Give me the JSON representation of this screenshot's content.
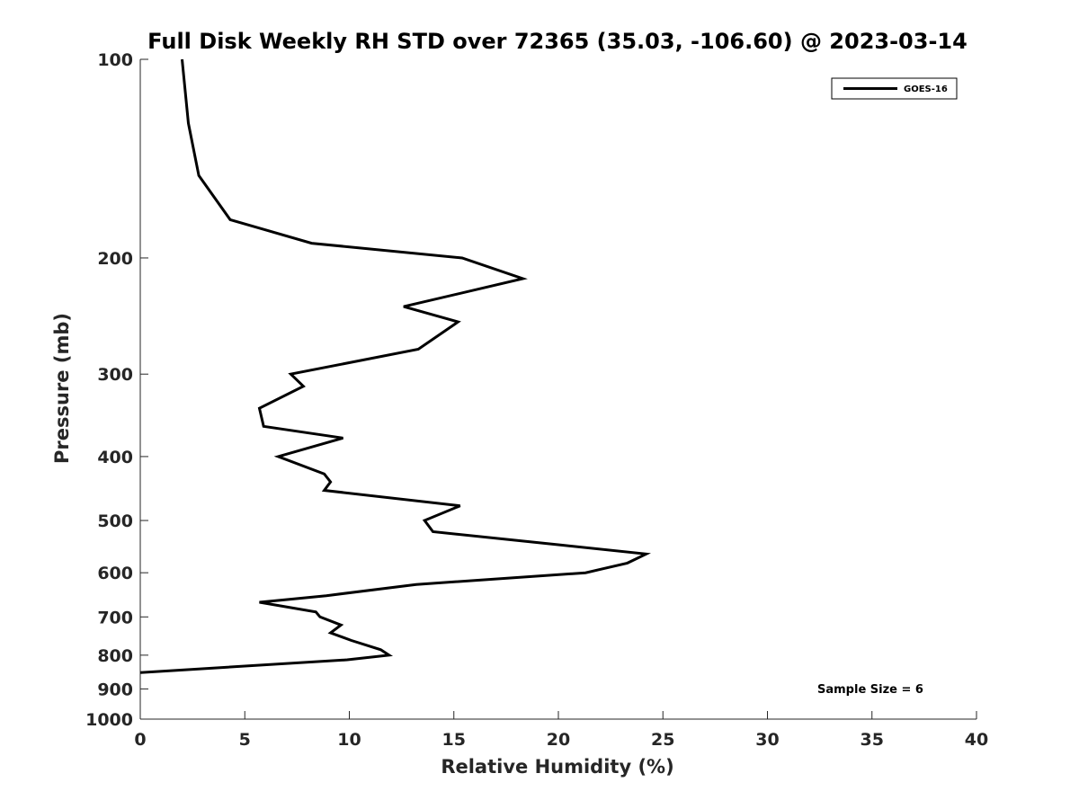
{
  "chart_data": {
    "type": "line",
    "title": "Full Disk Weekly RH STD over 72365 (35.03, -106.60) @ 2023-03-14",
    "xlabel": "Relative Humidity (%)",
    "ylabel": "Pressure (mb)",
    "xlim": [
      0,
      40
    ],
    "ylim": [
      100,
      1000
    ],
    "y_scale": "log",
    "y_inverted": true,
    "x_ticks": [
      "0",
      "5",
      "10",
      "15",
      "20",
      "25",
      "30",
      "35",
      "40"
    ],
    "y_ticks": [
      "100",
      "200",
      "300",
      "400",
      "500",
      "600",
      "700",
      "800",
      "900",
      "1000"
    ],
    "grid": false,
    "legend_position": "top-right",
    "annotation": "Sample Size = 6",
    "series": [
      {
        "name": "GOES-16",
        "color": "#000000",
        "points": [
          {
            "x": 2.0,
            "y": 100
          },
          {
            "x": 2.3,
            "y": 125
          },
          {
            "x": 2.8,
            "y": 150
          },
          {
            "x": 4.3,
            "y": 175
          },
          {
            "x": 8.2,
            "y": 190
          },
          {
            "x": 15.4,
            "y": 200
          },
          {
            "x": 18.3,
            "y": 215
          },
          {
            "x": 12.6,
            "y": 237
          },
          {
            "x": 15.2,
            "y": 250
          },
          {
            "x": 13.3,
            "y": 275
          },
          {
            "x": 7.2,
            "y": 300
          },
          {
            "x": 7.8,
            "y": 313
          },
          {
            "x": 5.7,
            "y": 338
          },
          {
            "x": 5.9,
            "y": 360
          },
          {
            "x": 9.7,
            "y": 375
          },
          {
            "x": 6.6,
            "y": 400
          },
          {
            "x": 8.8,
            "y": 425
          },
          {
            "x": 9.1,
            "y": 437
          },
          {
            "x": 8.8,
            "y": 450
          },
          {
            "x": 15.3,
            "y": 475
          },
          {
            "x": 13.6,
            "y": 500
          },
          {
            "x": 14.0,
            "y": 520
          },
          {
            "x": 20.2,
            "y": 545
          },
          {
            "x": 24.2,
            "y": 562
          },
          {
            "x": 23.3,
            "y": 580
          },
          {
            "x": 21.3,
            "y": 600
          },
          {
            "x": 13.2,
            "y": 625
          },
          {
            "x": 8.9,
            "y": 650
          },
          {
            "x": 5.7,
            "y": 665
          },
          {
            "x": 8.4,
            "y": 688
          },
          {
            "x": 8.6,
            "y": 700
          },
          {
            "x": 9.6,
            "y": 720
          },
          {
            "x": 9.1,
            "y": 740
          },
          {
            "x": 10.1,
            "y": 760
          },
          {
            "x": 11.5,
            "y": 785
          },
          {
            "x": 11.9,
            "y": 800
          },
          {
            "x": 9.9,
            "y": 813
          },
          {
            "x": 0.0,
            "y": 850
          }
        ]
      }
    ]
  }
}
